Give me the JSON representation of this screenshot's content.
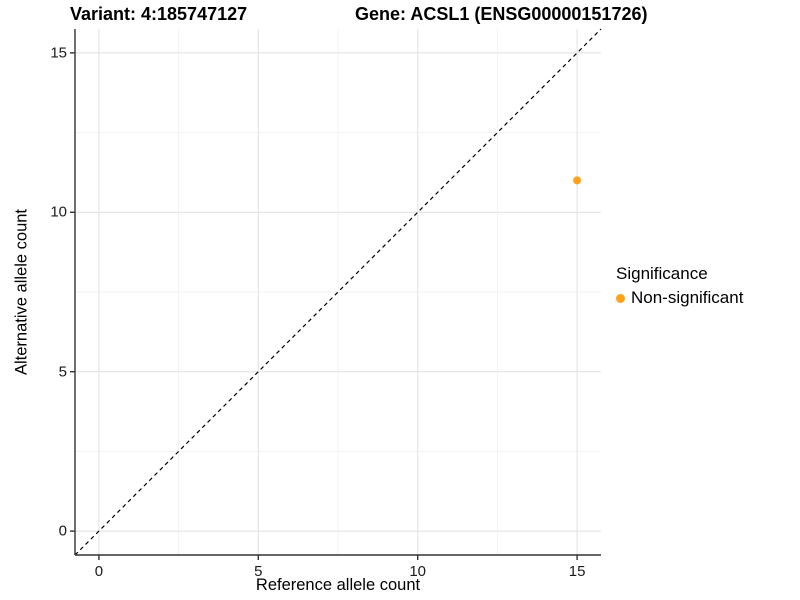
{
  "chart_data": {
    "type": "scatter",
    "title_left": "Variant: 4:185747127",
    "title_right": "Gene: ACSL1 (ENSG00000151726)",
    "xlabel": "Reference allele count",
    "ylabel": "Alternative allele count",
    "xlim": [
      -0.75,
      15.75
    ],
    "ylim": [
      -0.75,
      15.75
    ],
    "xticks": [
      0,
      5,
      10,
      15
    ],
    "yticks": [
      0,
      5,
      10,
      15
    ],
    "xminor": [
      2.5,
      7.5,
      12.5
    ],
    "yminor": [
      2.5,
      7.5,
      12.5
    ],
    "grid": true,
    "identity_line": {
      "slope": 1,
      "intercept": 0,
      "style": "dashed",
      "color": "#000000"
    },
    "series": [
      {
        "name": "Non-significant",
        "color": "#FFA119",
        "point_radius": 4,
        "points": [
          {
            "x": 15,
            "y": 11
          }
        ]
      }
    ],
    "legend": {
      "title": "Significance",
      "position": "right",
      "items": [
        {
          "label": "Non-significant",
          "color": "#FFA119"
        }
      ]
    },
    "colors": {
      "background": "#ffffff",
      "grid_major": "#e5e5e5",
      "grid_minor": "#f2f2f2",
      "axis_line": "#333333",
      "tick_mark": "#333333",
      "text": "#000000"
    }
  }
}
